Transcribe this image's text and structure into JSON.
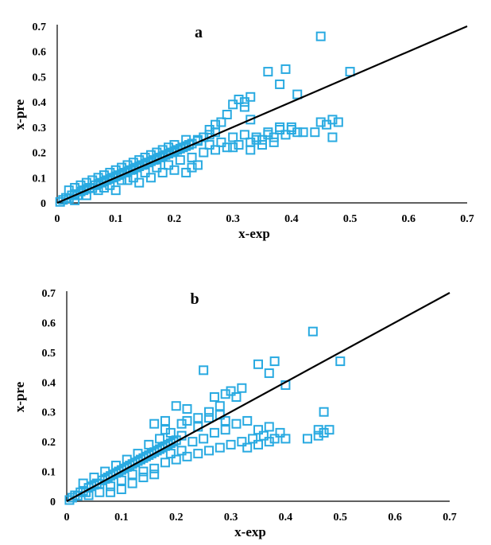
{
  "chart_data": [
    {
      "type": "scatter",
      "panel_label": "a",
      "xlabel": "x-exp",
      "ylabel": "x-pre",
      "xlim": [
        0,
        0.7
      ],
      "ylim": [
        0,
        0.7
      ],
      "x_ticks": [
        "0",
        "0.1",
        "0.2",
        "0.3",
        "0.4",
        "0.5",
        "0.6",
        "0.7"
      ],
      "y_ticks": [
        "0",
        "0.1",
        "0.2",
        "0.3",
        "0.4",
        "0.5",
        "0.6",
        "0.7"
      ],
      "marker_color": "#29aae1",
      "line_color": "#000000",
      "reference_line": [
        [
          0,
          0
        ],
        [
          0.7,
          0.7
        ]
      ],
      "points": [
        [
          0.005,
          0.004
        ],
        [
          0.01,
          0.012
        ],
        [
          0.015,
          0.02
        ],
        [
          0.02,
          0.018
        ],
        [
          0.025,
          0.03
        ],
        [
          0.03,
          0.035
        ],
        [
          0.035,
          0.03
        ],
        [
          0.04,
          0.045
        ],
        [
          0.045,
          0.05
        ],
        [
          0.05,
          0.055
        ],
        [
          0.055,
          0.06
        ],
        [
          0.06,
          0.058
        ],
        [
          0.065,
          0.07
        ],
        [
          0.07,
          0.075
        ],
        [
          0.075,
          0.08
        ],
        [
          0.08,
          0.085
        ],
        [
          0.085,
          0.09
        ],
        [
          0.09,
          0.095
        ],
        [
          0.095,
          0.1
        ],
        [
          0.1,
          0.105
        ],
        [
          0.105,
          0.11
        ],
        [
          0.11,
          0.115
        ],
        [
          0.115,
          0.12
        ],
        [
          0.12,
          0.125
        ],
        [
          0.125,
          0.13
        ],
        [
          0.13,
          0.135
        ],
        [
          0.135,
          0.14
        ],
        [
          0.14,
          0.145
        ],
        [
          0.145,
          0.15
        ],
        [
          0.15,
          0.155
        ],
        [
          0.155,
          0.16
        ],
        [
          0.16,
          0.165
        ],
        [
          0.165,
          0.17
        ],
        [
          0.17,
          0.175
        ],
        [
          0.175,
          0.18
        ],
        [
          0.18,
          0.185
        ],
        [
          0.185,
          0.19
        ],
        [
          0.19,
          0.195
        ],
        [
          0.195,
          0.2
        ],
        [
          0.2,
          0.205
        ],
        [
          0.205,
          0.21
        ],
        [
          0.21,
          0.215
        ],
        [
          0.215,
          0.22
        ],
        [
          0.22,
          0.225
        ],
        [
          0.225,
          0.23
        ],
        [
          0.23,
          0.235
        ],
        [
          0.24,
          0.245
        ],
        [
          0.25,
          0.26
        ],
        [
          0.26,
          0.27
        ],
        [
          0.27,
          0.28
        ],
        [
          0.02,
          0.05
        ],
        [
          0.03,
          0.06
        ],
        [
          0.04,
          0.07
        ],
        [
          0.05,
          0.08
        ],
        [
          0.06,
          0.09
        ],
        [
          0.07,
          0.1
        ],
        [
          0.08,
          0.11
        ],
        [
          0.09,
          0.12
        ],
        [
          0.1,
          0.13
        ],
        [
          0.11,
          0.14
        ],
        [
          0.12,
          0.15
        ],
        [
          0.13,
          0.16
        ],
        [
          0.14,
          0.17
        ],
        [
          0.15,
          0.18
        ],
        [
          0.16,
          0.19
        ],
        [
          0.17,
          0.2
        ],
        [
          0.18,
          0.21
        ],
        [
          0.19,
          0.22
        ],
        [
          0.2,
          0.23
        ],
        [
          0.22,
          0.25
        ],
        [
          0.03,
          0.01
        ],
        [
          0.05,
          0.03
        ],
        [
          0.07,
          0.05
        ],
        [
          0.09,
          0.07
        ],
        [
          0.11,
          0.09
        ],
        [
          0.13,
          0.1
        ],
        [
          0.15,
          0.12
        ],
        [
          0.17,
          0.14
        ],
        [
          0.19,
          0.15
        ],
        [
          0.21,
          0.17
        ],
        [
          0.23,
          0.18
        ],
        [
          0.25,
          0.2
        ],
        [
          0.27,
          0.21
        ],
        [
          0.29,
          0.22
        ],
        [
          0.31,
          0.23
        ],
        [
          0.33,
          0.24
        ],
        [
          0.35,
          0.25
        ],
        [
          0.37,
          0.26
        ],
        [
          0.39,
          0.27
        ],
        [
          0.41,
          0.28
        ],
        [
          0.24,
          0.25
        ],
        [
          0.26,
          0.23
        ],
        [
          0.28,
          0.24
        ],
        [
          0.3,
          0.26
        ],
        [
          0.32,
          0.27
        ],
        [
          0.34,
          0.26
        ],
        [
          0.36,
          0.28
        ],
        [
          0.38,
          0.29
        ],
        [
          0.4,
          0.3
        ],
        [
          0.3,
          0.22
        ],
        [
          0.27,
          0.31
        ],
        [
          0.29,
          0.35
        ],
        [
          0.3,
          0.39
        ],
        [
          0.31,
          0.41
        ],
        [
          0.32,
          0.4
        ],
        [
          0.33,
          0.42
        ],
        [
          0.32,
          0.38
        ],
        [
          0.33,
          0.33
        ],
        [
          0.28,
          0.32
        ],
        [
          0.26,
          0.29
        ],
        [
          0.36,
          0.52
        ],
        [
          0.39,
          0.53
        ],
        [
          0.38,
          0.47
        ],
        [
          0.41,
          0.43
        ],
        [
          0.45,
          0.66
        ],
        [
          0.5,
          0.52
        ],
        [
          0.46,
          0.31
        ],
        [
          0.47,
          0.33
        ],
        [
          0.48,
          0.32
        ],
        [
          0.47,
          0.26
        ],
        [
          0.44,
          0.28
        ],
        [
          0.45,
          0.32
        ],
        [
          0.4,
          0.29
        ],
        [
          0.42,
          0.28
        ],
        [
          0.38,
          0.3
        ],
        [
          0.36,
          0.27
        ],
        [
          0.34,
          0.25
        ],
        [
          0.33,
          0.21
        ],
        [
          0.35,
          0.23
        ],
        [
          0.37,
          0.24
        ],
        [
          0.12,
          0.09
        ],
        [
          0.14,
          0.08
        ],
        [
          0.16,
          0.1
        ],
        [
          0.18,
          0.12
        ],
        [
          0.2,
          0.13
        ],
        [
          0.22,
          0.12
        ],
        [
          0.23,
          0.14
        ],
        [
          0.24,
          0.15
        ],
        [
          0.08,
          0.06
        ],
        [
          0.1,
          0.05
        ]
      ]
    },
    {
      "type": "scatter",
      "panel_label": "b",
      "xlabel": "x-exp",
      "ylabel": "x-pre",
      "xlim": [
        0,
        0.7
      ],
      "ylim": [
        0,
        0.7
      ],
      "x_ticks": [
        "0",
        "0.1",
        "0.2",
        "0.3",
        "0.4",
        "0.5",
        "0.6",
        "0.7"
      ],
      "y_ticks": [
        "0",
        "0.1",
        "0.2",
        "0.3",
        "0.4",
        "0.5",
        "0.6",
        "0.7"
      ],
      "marker_color": "#29aae1",
      "line_color": "#000000",
      "reference_line": [
        [
          0,
          0
        ],
        [
          0.7,
          0.7
        ]
      ],
      "points": [
        [
          0.005,
          0.004
        ],
        [
          0.01,
          0.012
        ],
        [
          0.015,
          0.02
        ],
        [
          0.02,
          0.018
        ],
        [
          0.025,
          0.03
        ],
        [
          0.03,
          0.035
        ],
        [
          0.035,
          0.03
        ],
        [
          0.04,
          0.045
        ],
        [
          0.045,
          0.05
        ],
        [
          0.05,
          0.055
        ],
        [
          0.055,
          0.06
        ],
        [
          0.06,
          0.058
        ],
        [
          0.065,
          0.07
        ],
        [
          0.07,
          0.075
        ],
        [
          0.075,
          0.08
        ],
        [
          0.08,
          0.085
        ],
        [
          0.085,
          0.09
        ],
        [
          0.09,
          0.095
        ],
        [
          0.095,
          0.1
        ],
        [
          0.1,
          0.105
        ],
        [
          0.105,
          0.11
        ],
        [
          0.11,
          0.115
        ],
        [
          0.115,
          0.12
        ],
        [
          0.12,
          0.125
        ],
        [
          0.125,
          0.13
        ],
        [
          0.13,
          0.135
        ],
        [
          0.135,
          0.14
        ],
        [
          0.14,
          0.145
        ],
        [
          0.145,
          0.15
        ],
        [
          0.15,
          0.155
        ],
        [
          0.155,
          0.16
        ],
        [
          0.16,
          0.165
        ],
        [
          0.165,
          0.17
        ],
        [
          0.17,
          0.175
        ],
        [
          0.175,
          0.18
        ],
        [
          0.18,
          0.185
        ],
        [
          0.185,
          0.19
        ],
        [
          0.19,
          0.195
        ],
        [
          0.195,
          0.2
        ],
        [
          0.2,
          0.205
        ],
        [
          0.03,
          0.06
        ],
        [
          0.05,
          0.08
        ],
        [
          0.07,
          0.1
        ],
        [
          0.09,
          0.12
        ],
        [
          0.11,
          0.14
        ],
        [
          0.13,
          0.16
        ],
        [
          0.15,
          0.19
        ],
        [
          0.17,
          0.21
        ],
        [
          0.19,
          0.23
        ],
        [
          0.21,
          0.26
        ],
        [
          0.22,
          0.27
        ],
        [
          0.2,
          0.32
        ],
        [
          0.22,
          0.31
        ],
        [
          0.24,
          0.28
        ],
        [
          0.26,
          0.3
        ],
        [
          0.28,
          0.32
        ],
        [
          0.27,
          0.35
        ],
        [
          0.29,
          0.36
        ],
        [
          0.3,
          0.37
        ],
        [
          0.31,
          0.35
        ],
        [
          0.32,
          0.38
        ],
        [
          0.16,
          0.26
        ],
        [
          0.18,
          0.24
        ],
        [
          0.25,
          0.44
        ],
        [
          0.35,
          0.46
        ],
        [
          0.37,
          0.43
        ],
        [
          0.38,
          0.47
        ],
        [
          0.4,
          0.39
        ],
        [
          0.45,
          0.57
        ],
        [
          0.5,
          0.47
        ],
        [
          0.04,
          0.02
        ],
        [
          0.06,
          0.03
        ],
        [
          0.08,
          0.05
        ],
        [
          0.1,
          0.07
        ],
        [
          0.12,
          0.09
        ],
        [
          0.14,
          0.1
        ],
        [
          0.16,
          0.11
        ],
        [
          0.18,
          0.13
        ],
        [
          0.2,
          0.14
        ],
        [
          0.22,
          0.15
        ],
        [
          0.24,
          0.16
        ],
        [
          0.26,
          0.17
        ],
        [
          0.28,
          0.18
        ],
        [
          0.3,
          0.19
        ],
        [
          0.32,
          0.2
        ],
        [
          0.34,
          0.21
        ],
        [
          0.36,
          0.22
        ],
        [
          0.38,
          0.21
        ],
        [
          0.4,
          0.21
        ],
        [
          0.33,
          0.18
        ],
        [
          0.35,
          0.19
        ],
        [
          0.37,
          0.2
        ],
        [
          0.39,
          0.23
        ],
        [
          0.33,
          0.27
        ],
        [
          0.29,
          0.27
        ],
        [
          0.31,
          0.26
        ],
        [
          0.35,
          0.24
        ],
        [
          0.37,
          0.25
        ],
        [
          0.23,
          0.2
        ],
        [
          0.25,
          0.21
        ],
        [
          0.46,
          0.24
        ],
        [
          0.47,
          0.23
        ],
        [
          0.48,
          0.24
        ],
        [
          0.46,
          0.22
        ],
        [
          0.47,
          0.3
        ],
        [
          0.44,
          0.21
        ],
        [
          0.27,
          0.23
        ],
        [
          0.29,
          0.24
        ],
        [
          0.21,
          0.17
        ],
        [
          0.19,
          0.16
        ],
        [
          0.12,
          0.06
        ],
        [
          0.1,
          0.04
        ],
        [
          0.08,
          0.03
        ],
        [
          0.14,
          0.08
        ],
        [
          0.16,
          0.09
        ],
        [
          0.24,
          0.25
        ],
        [
          0.26,
          0.28
        ],
        [
          0.28,
          0.29
        ],
        [
          0.18,
          0.27
        ],
        [
          0.21,
          0.22
        ]
      ]
    }
  ]
}
